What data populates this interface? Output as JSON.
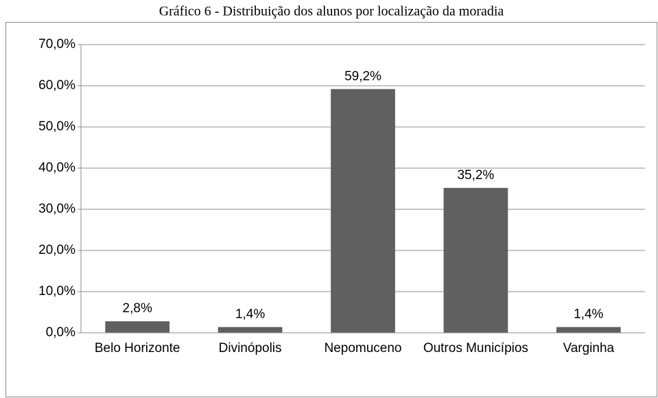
{
  "chart_data": {
    "type": "bar",
    "title": "Gráfico 6 - Distribuição dos alunos por localização da moradia",
    "categories": [
      "Belo Horizonte",
      "Divinópolis",
      "Nepomuceno",
      "Outros Municípios",
      "Varginha"
    ],
    "values": [
      2.8,
      1.4,
      59.2,
      35.2,
      1.4
    ],
    "value_labels": [
      "2,8%",
      "1,4%",
      "59,2%",
      "35,2%",
      "1,4%"
    ],
    "color": "#606060",
    "ylim": [
      0,
      70
    ],
    "yticks": [
      {
        "value": 0,
        "label": "0,0%"
      },
      {
        "value": 10,
        "label": "10,0%"
      },
      {
        "value": 20,
        "label": "20,0%"
      },
      {
        "value": 30,
        "label": "30,0%"
      },
      {
        "value": 40,
        "label": "40,0%"
      },
      {
        "value": 50,
        "label": "50,0%"
      },
      {
        "value": 60,
        "label": "60,0%"
      },
      {
        "value": 70,
        "label": "70,0%"
      }
    ],
    "grid": true
  }
}
